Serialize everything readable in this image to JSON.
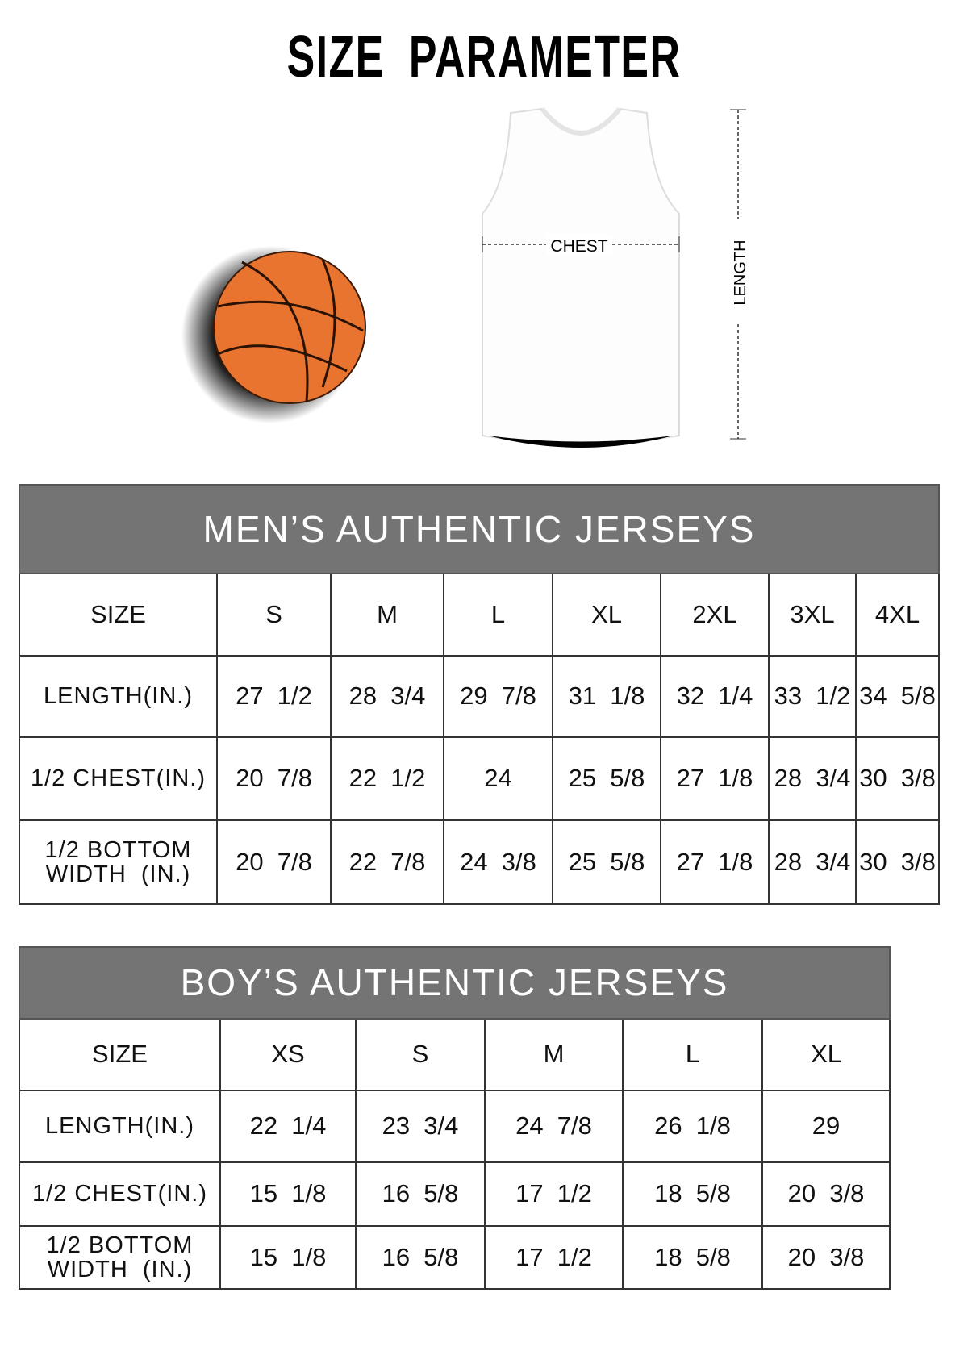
{
  "title": "SIZE PARAMETER",
  "diagram": {
    "chest_label": "CHEST",
    "length_label": "LENGTH",
    "ball_color": "#e8742f",
    "header_color": "#747474"
  },
  "mens": {
    "title": "MEN’S AUTHENTIC JERSEYS",
    "size_label": "SIZE",
    "sizes": [
      "S",
      "M",
      "L",
      "XL",
      "2XL",
      "3XL",
      "4XL"
    ],
    "rows": [
      {
        "label": "LENGTH(IN.)",
        "values": [
          "27  1/2",
          "28  3/4",
          "29  7/8",
          "31  1/8",
          "32  1/4",
          "33  1/2",
          "34  5/8"
        ]
      },
      {
        "label": "1/2 CHEST(IN.)",
        "values": [
          "20  7/8",
          "22  1/2",
          "24",
          "25  5/8",
          "27  1/8",
          "28  3/4",
          "30  3/8"
        ]
      },
      {
        "label": "1/2 BOTTOM WIDTH  (IN.)",
        "values": [
          "20  7/8",
          "22  7/8",
          "24  3/8",
          "25  5/8",
          "27  1/8",
          "28  3/4",
          "30  3/8"
        ]
      }
    ]
  },
  "boys": {
    "title": "BOY’S AUTHENTIC JERSEYS",
    "size_label": "SIZE",
    "sizes": [
      "XS",
      "S",
      "M",
      "L",
      "XL"
    ],
    "rows": [
      {
        "label": "LENGTH(IN.)",
        "values": [
          "22  1/4",
          "23  3/4",
          "24  7/8",
          "26  1/8",
          "29"
        ]
      },
      {
        "label": "1/2 CHEST(IN.)",
        "values": [
          "15  1/8",
          "16  5/8",
          "17  1/2",
          "18  5/8",
          "20  3/8"
        ]
      },
      {
        "label": "1/2 BOTTOM WIDTH  (IN.)",
        "values": [
          "15  1/8",
          "16  5/8",
          "17  1/2",
          "18  5/8",
          "20  3/8"
        ]
      }
    ]
  }
}
